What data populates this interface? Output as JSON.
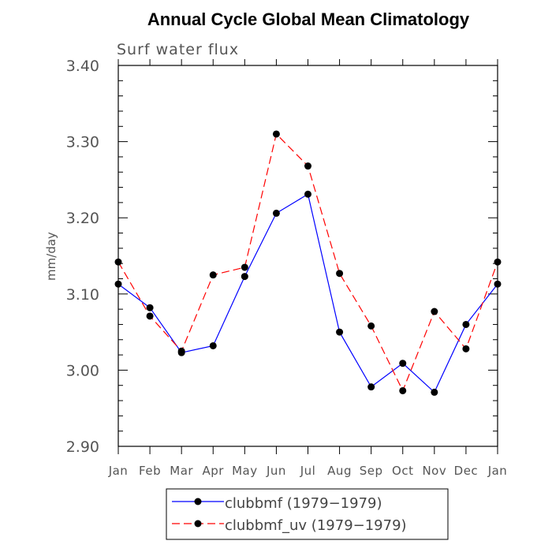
{
  "chart_data": {
    "type": "line",
    "title": "Annual Cycle Global Mean Climatology",
    "subtitle": "Surf water flux",
    "xlabel": "",
    "ylabel": "mm/day",
    "categories": [
      "Jan",
      "Feb",
      "Mar",
      "Apr",
      "May",
      "Jun",
      "Jul",
      "Aug",
      "Sep",
      "Oct",
      "Nov",
      "Dec",
      "Jan"
    ],
    "ylim": [
      2.9,
      3.4
    ],
    "yticks": [
      "2.90",
      "3.00",
      "3.10",
      "3.20",
      "3.30",
      "3.40"
    ],
    "series": [
      {
        "name": "clubbmf (1979−1979)",
        "color": "#0000ff",
        "dash": "solid",
        "values": [
          3.113,
          3.082,
          3.023,
          3.032,
          3.123,
          3.206,
          3.231,
          3.05,
          2.978,
          3.009,
          2.971,
          3.06,
          3.113
        ]
      },
      {
        "name": "clubbmf_uv (1979−1979)",
        "color": "#ff0000",
        "dash": "dashed",
        "values": [
          3.142,
          3.071,
          3.025,
          3.125,
          3.135,
          3.31,
          3.268,
          3.127,
          3.058,
          2.973,
          3.077,
          3.028,
          3.142
        ]
      }
    ],
    "grid": false,
    "legend": "bottom-center"
  }
}
